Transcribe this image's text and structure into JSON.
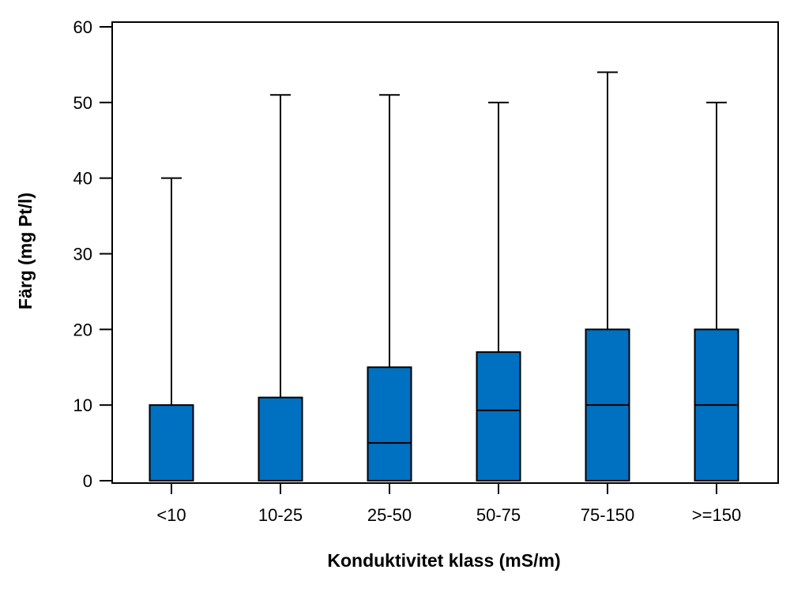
{
  "chart_data": {
    "type": "box",
    "xlabel": "Konduktivitet klass (mS/m)",
    "ylabel": "Färg (mg Pt/l)",
    "ylim": [
      0,
      60
    ],
    "yticks": [
      0,
      10,
      20,
      30,
      40,
      50,
      60
    ],
    "grid": false,
    "legend": "none",
    "box_color": "#0070C0",
    "categories": [
      "<10",
      "10-25",
      "25-50",
      "50-75",
      "75-150",
      ">=150"
    ],
    "boxes": [
      {
        "category": "<10",
        "min": 0,
        "q1": 0,
        "median": 0,
        "q3": 10,
        "max": 40
      },
      {
        "category": "10-25",
        "min": 0,
        "q1": 0,
        "median": 0,
        "q3": 11,
        "max": 51
      },
      {
        "category": "25-50",
        "min": 0,
        "q1": 0,
        "median": 5,
        "q3": 15,
        "max": 51
      },
      {
        "category": "50-75",
        "min": 0,
        "q1": 0,
        "median": 9.3,
        "q3": 17,
        "max": 50
      },
      {
        "category": "75-150",
        "min": 0,
        "q1": 0,
        "median": 10,
        "q3": 20,
        "max": 54
      },
      {
        "category": ">=150",
        "min": 0,
        "q1": 0,
        "median": 10,
        "q3": 20,
        "max": 50
      }
    ]
  }
}
